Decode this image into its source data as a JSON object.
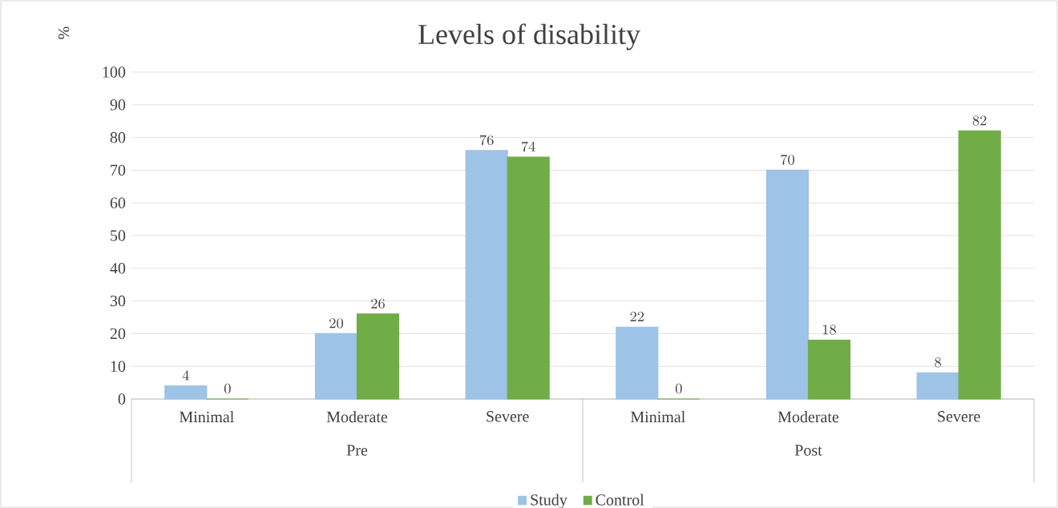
{
  "chart_data": {
    "type": "bar",
    "title": "Levels of disability",
    "ylabel": "%",
    "categories": [
      "Minimal",
      "Moderate",
      "Severe",
      "Minimal",
      "Moderate",
      "Severe"
    ],
    "series": [
      {
        "name": "Study",
        "color": "#9dc3e6",
        "values": [
          4,
          20,
          76,
          22,
          70,
          8
        ]
      },
      {
        "name": "Control",
        "color": "#70ad47",
        "values": [
          0,
          26,
          74,
          0,
          18,
          82
        ]
      }
    ],
    "annotations": [
      "Pre",
      "Post"
    ],
    "ylim": [
      0,
      100
    ],
    "yticks": [
      0,
      10,
      20,
      30,
      40,
      50,
      60,
      70,
      80,
      90,
      100
    ],
    "grid": "y",
    "legend": "bottom",
    "data_labels": true
  }
}
